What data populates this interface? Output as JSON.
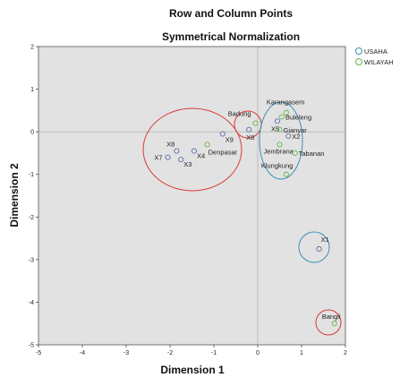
{
  "chart_data": {
    "type": "scatter",
    "title": "Row and Column Points",
    "subtitle": "Symmetrical Normalization",
    "xlabel": "Dimension 1",
    "ylabel": "Dimension 2",
    "xlim": [
      -5,
      2
    ],
    "ylim": [
      -5,
      2
    ],
    "xticks": [
      -5,
      -4,
      -3,
      -2,
      -1,
      0,
      1,
      2
    ],
    "yticks": [
      -5,
      -4,
      -3,
      -2,
      -1,
      0,
      1,
      2
    ],
    "legend": {
      "placement": "right-top",
      "entries": [
        {
          "label": "USAHA",
          "color": "#3a8fb7"
        },
        {
          "label": "WILAYAH",
          "color": "#66b84a"
        }
      ]
    },
    "series": [
      {
        "name": "USAHA",
        "color": "#5b6fa8",
        "points": [
          {
            "label": "X8",
            "x": -1.85,
            "y": -0.45
          },
          {
            "label": "X7",
            "x": -2.05,
            "y": -0.6
          },
          {
            "label": "X3",
            "x": -1.75,
            "y": -0.65
          },
          {
            "label": "X4",
            "x": -1.45,
            "y": -0.45
          },
          {
            "label": "X9",
            "x": -0.8,
            "y": -0.05
          },
          {
            "label": "X6",
            "x": -0.2,
            "y": 0.05
          },
          {
            "label": "X5",
            "x": 0.45,
            "y": 0.25
          },
          {
            "label": "X2",
            "x": 0.7,
            "y": -0.1
          },
          {
            "label": "X1",
            "x": 1.4,
            "y": -2.75
          }
        ]
      },
      {
        "name": "WILAYAH",
        "color": "#66b84a",
        "points": [
          {
            "label": "Denpasar",
            "x": -1.15,
            "y": -0.3
          },
          {
            "label": "Badung",
            "x": -0.05,
            "y": 0.2
          },
          {
            "label": "Karangasem",
            "x": 0.65,
            "y": 0.45
          },
          {
            "label": "Buleleng",
            "x": 0.55,
            "y": 0.35
          },
          {
            "label": "Gianyar",
            "x": 0.5,
            "y": 0.05
          },
          {
            "label": "Jembrana",
            "x": 0.5,
            "y": -0.3
          },
          {
            "label": "Tabanan",
            "x": 0.85,
            "y": -0.5
          },
          {
            "label": "Klungkung",
            "x": 0.65,
            "y": -1.0
          },
          {
            "label": "Bangli",
            "x": 1.75,
            "y": -4.5
          }
        ]
      }
    ]
  }
}
